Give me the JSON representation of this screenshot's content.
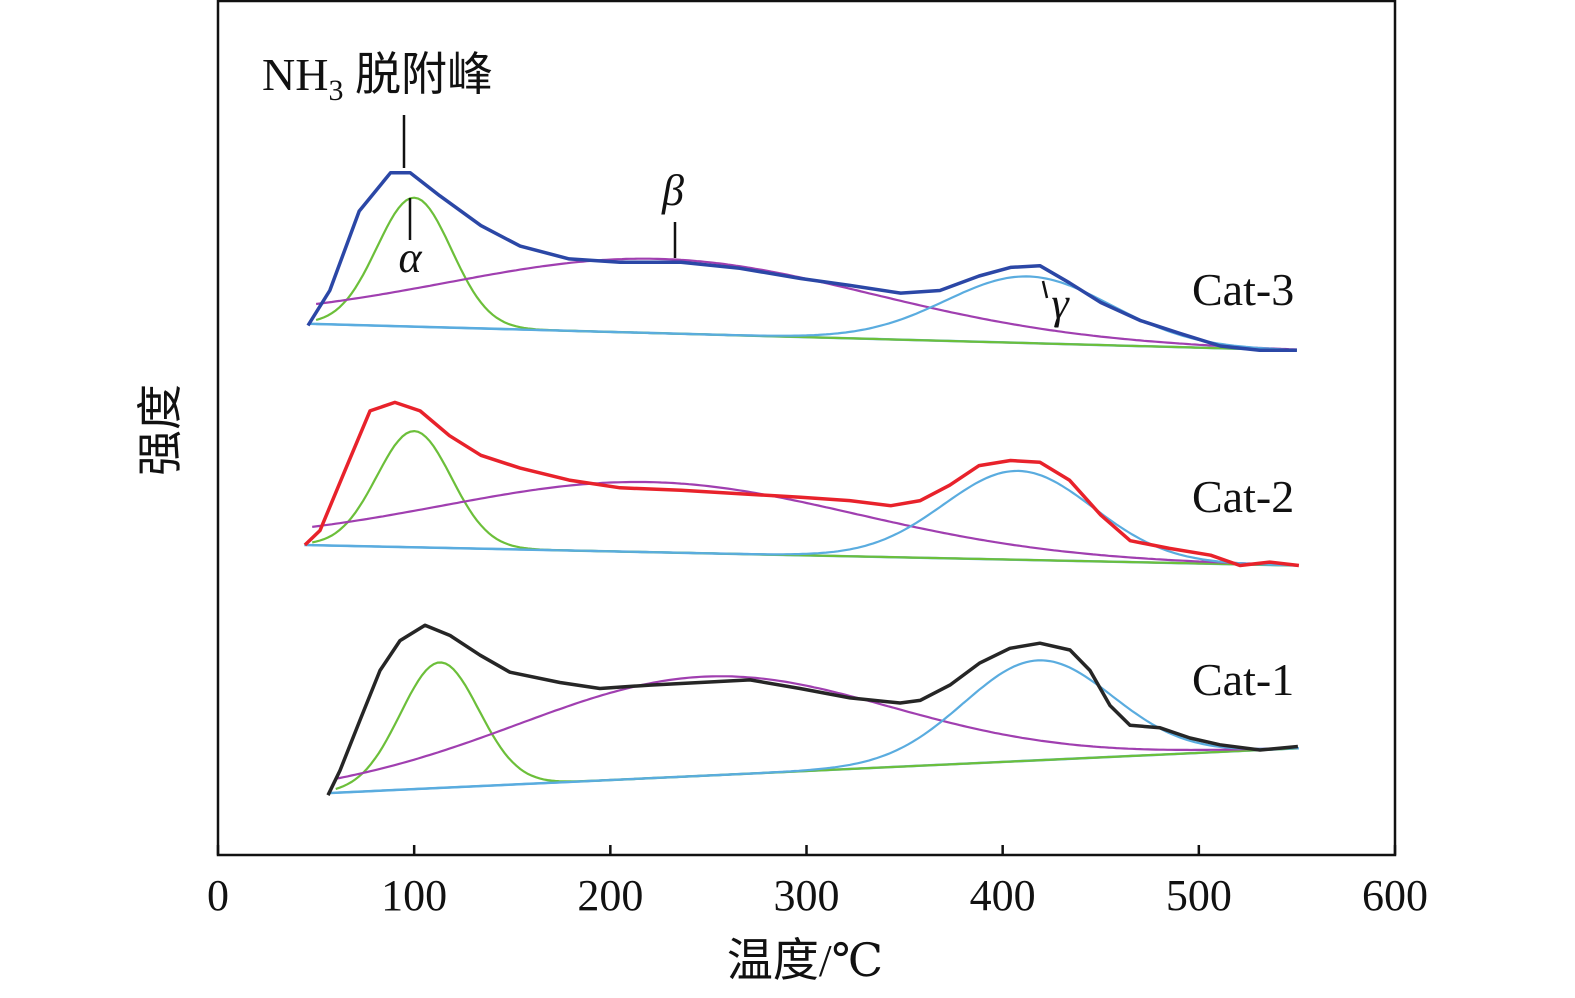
{
  "chart_data": {
    "type": "line",
    "xlabel": "温度/℃",
    "ylabel": "强度",
    "xlim": [
      0,
      600
    ],
    "ylim": [
      0,
      100
    ],
    "x_ticks": [
      0,
      100,
      200,
      300,
      400,
      500,
      600
    ],
    "y_ticks": [],
    "grid": false,
    "annotations": {
      "main_prefix": "NH",
      "main_sub": "3",
      "main_suffix": " 脱附峰",
      "alpha": "α",
      "beta": "β",
      "gamma": "γ"
    },
    "colors": {
      "Cat-3": "#2b47a6",
      "Cat-2": "#e8222b",
      "Cat-1": "#262626",
      "alpha_fit": "#6cbf3a",
      "beta_fit": "#a03fb0",
      "gamma_fit": "#5aacdf",
      "baseline": "#5aacdf"
    },
    "series": [
      {
        "name": "Cat-3",
        "x": [
          45.9,
          57,
          72,
          88,
          98,
          113,
          134,
          154,
          179,
          205,
          236,
          266,
          297,
          322,
          348,
          368,
          388,
          404,
          419,
          434,
          450,
          470,
          490,
          511,
          531,
          550
        ],
        "y": [
          62.0,
          66.1,
          75.4,
          79.9,
          79.9,
          77.2,
          73.7,
          71.3,
          69.8,
          69.4,
          69.4,
          68.7,
          67.5,
          66.7,
          65.8,
          66.1,
          67.8,
          68.8,
          69.0,
          67.0,
          64.7,
          62.6,
          61.1,
          59.6,
          59.1,
          59.1
        ],
        "baseline": {
          "x": [
            46,
            550
          ],
          "y": [
            62.2,
            59.1
          ]
        },
        "peaks": [
          {
            "label": "α",
            "center": 100,
            "height": 15.1,
            "sigma": 19
          },
          {
            "label": "β",
            "center": 225,
            "height": 8.7,
            "sigma": 108
          },
          {
            "label": "γ",
            "center": 413,
            "height": 7.8,
            "sigma": 42
          }
        ]
      },
      {
        "name": "Cat-2",
        "x": [
          44.3,
          52,
          64.7,
          77.5,
          90.2,
          103,
          118,
          134,
          154,
          179,
          205,
          236,
          266,
          297,
          322,
          343,
          358,
          373,
          388,
          404,
          419,
          434,
          450,
          465,
          485,
          506,
          521,
          536,
          551
        ],
        "y": [
          36.3,
          38.0,
          45.0,
          52.0,
          53.0,
          52.0,
          49.1,
          46.8,
          45.3,
          43.9,
          43.0,
          42.7,
          42.3,
          41.9,
          41.5,
          40.9,
          41.5,
          43.3,
          45.6,
          46.2,
          46.0,
          43.9,
          39.8,
          36.8,
          35.9,
          35.1,
          33.9,
          34.3,
          33.9
        ],
        "baseline": {
          "x": [
            44,
            550
          ],
          "y": [
            36.3,
            33.9
          ]
        },
        "peaks": [
          {
            "label": "α",
            "center": 100,
            "height": 13.6,
            "sigma": 19
          },
          {
            "label": "β",
            "center": 220,
            "height": 8.2,
            "sigma": 105
          },
          {
            "label": "γ",
            "center": 408,
            "height": 10.4,
            "sigma": 38
          }
        ]
      },
      {
        "name": "Cat-1",
        "x": [
          56.1,
          62.2,
          72.4,
          82.6,
          92.8,
          105.5,
          118.3,
          133.6,
          148.8,
          174.3,
          194.7,
          220.2,
          245.7,
          271.2,
          296.7,
          322.2,
          347.7,
          357.9,
          373.1,
          388.4,
          403.7,
          419.0,
          434.3,
          444.5,
          454.7,
          464.9,
          480.2,
          495.5,
          510.8,
          531.2,
          550.5
        ],
        "y": [
          7.0,
          9.9,
          15.8,
          21.6,
          25.1,
          26.9,
          25.7,
          23.4,
          21.4,
          20.2,
          19.5,
          19.9,
          20.2,
          20.5,
          19.5,
          18.4,
          17.8,
          18.1,
          19.9,
          22.5,
          24.2,
          24.8,
          24.0,
          21.6,
          17.5,
          15.2,
          14.9,
          13.7,
          12.9,
          12.3,
          12.7
        ],
        "baseline": {
          "x": [
            56,
            551
          ],
          "y": [
            7.25,
            12.5
          ]
        },
        "peaks": [
          {
            "label": "α",
            "center": 113,
            "height": 14.7,
            "sigma": 20
          },
          {
            "label": "β",
            "center": 248,
            "height": 11.6,
            "sigma": 95
          },
          {
            "label": "γ",
            "center": 418,
            "height": 11.7,
            "sigma": 38
          }
        ]
      }
    ]
  }
}
